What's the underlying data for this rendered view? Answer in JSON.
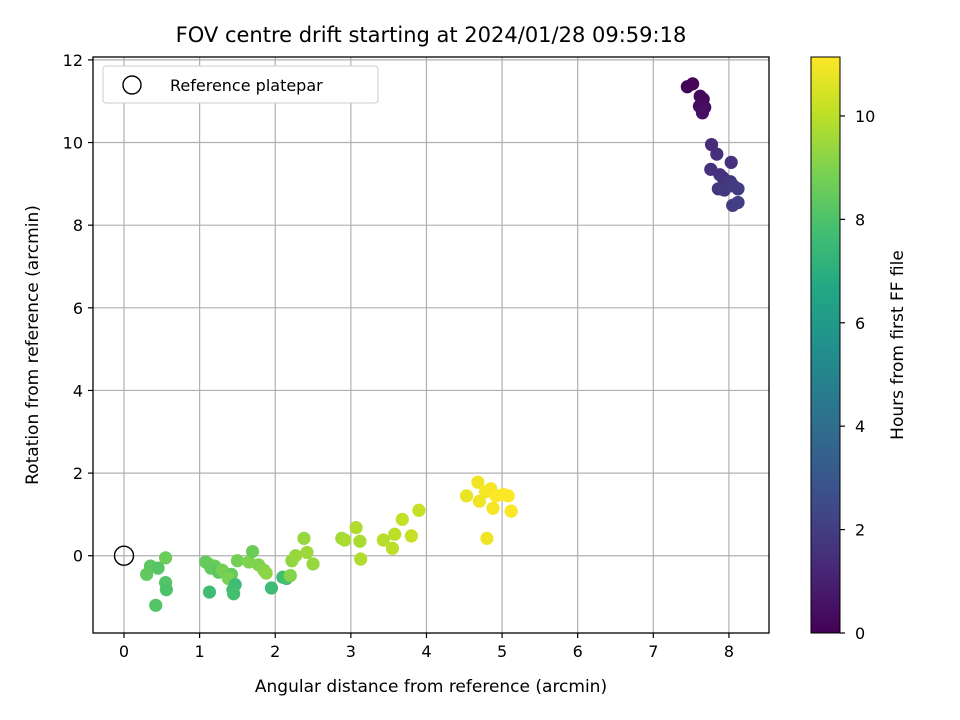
{
  "chart_data": {
    "type": "scatter",
    "title": "FOV centre drift starting at 2024/01/28 09:59:18",
    "xlabel": "Angular distance from reference (arcmin)",
    "ylabel": "Rotation from reference (arcmin)",
    "xlim": [
      -0.41,
      8.53
    ],
    "ylim": [
      -1.87,
      12.07
    ],
    "xticks": [
      0,
      1,
      2,
      3,
      4,
      5,
      6,
      7,
      8
    ],
    "yticks": [
      0,
      2,
      4,
      6,
      8,
      10,
      12
    ],
    "grid": true,
    "legend": {
      "placement": "top-left",
      "entries": [
        "Reference platepar"
      ]
    },
    "reference_point": {
      "x": 0,
      "y": 0
    },
    "colorbar": {
      "label": "Hours from first FF file",
      "range": [
        0,
        11.14
      ],
      "ticks": [
        0,
        2,
        4,
        6,
        8,
        10
      ],
      "colormap": "viridis"
    },
    "points": [
      {
        "x": 7.45,
        "y": 11.35,
        "h": 0.1
      },
      {
        "x": 7.52,
        "y": 11.42,
        "h": 0.15
      },
      {
        "x": 7.62,
        "y": 11.12,
        "h": 0.25
      },
      {
        "x": 7.66,
        "y": 11.05,
        "h": 0.3
      },
      {
        "x": 7.61,
        "y": 10.88,
        "h": 0.35
      },
      {
        "x": 7.68,
        "y": 10.85,
        "h": 0.4
      },
      {
        "x": 7.65,
        "y": 10.72,
        "h": 0.45
      },
      {
        "x": 7.77,
        "y": 9.95,
        "h": 1.4
      },
      {
        "x": 7.84,
        "y": 9.72,
        "h": 1.5
      },
      {
        "x": 7.76,
        "y": 9.35,
        "h": 1.6
      },
      {
        "x": 8.03,
        "y": 9.52,
        "h": 1.55
      },
      {
        "x": 7.92,
        "y": 9.15,
        "h": 1.7
      },
      {
        "x": 7.88,
        "y": 9.22,
        "h": 1.65
      },
      {
        "x": 8.02,
        "y": 9.05,
        "h": 1.8
      },
      {
        "x": 7.86,
        "y": 8.88,
        "h": 1.75
      },
      {
        "x": 7.94,
        "y": 8.85,
        "h": 1.85
      },
      {
        "x": 8.06,
        "y": 8.95,
        "h": 1.9
      },
      {
        "x": 8.12,
        "y": 8.88,
        "h": 1.95
      },
      {
        "x": 8.05,
        "y": 8.48,
        "h": 2.0
      },
      {
        "x": 8.12,
        "y": 8.55,
        "h": 2.05
      },
      {
        "x": 0.55,
        "y": -0.05,
        "h": 8.6
      },
      {
        "x": 0.35,
        "y": -0.25,
        "h": 8.3
      },
      {
        "x": 0.3,
        "y": -0.45,
        "h": 8.4
      },
      {
        "x": 0.45,
        "y": -0.3,
        "h": 8.2
      },
      {
        "x": 0.55,
        "y": -0.65,
        "h": 8.1
      },
      {
        "x": 0.56,
        "y": -0.82,
        "h": 8.0
      },
      {
        "x": 0.42,
        "y": -1.2,
        "h": 8.1
      },
      {
        "x": 1.12,
        "y": -0.2,
        "h": 8.7
      },
      {
        "x": 1.08,
        "y": -0.15,
        "h": 8.5
      },
      {
        "x": 1.2,
        "y": -0.25,
        "h": 8.6
      },
      {
        "x": 1.15,
        "y": -0.3,
        "h": 8.4
      },
      {
        "x": 1.25,
        "y": -0.4,
        "h": 8.3
      },
      {
        "x": 1.3,
        "y": -0.35,
        "h": 8.8
      },
      {
        "x": 1.42,
        "y": -0.45,
        "h": 8.5
      },
      {
        "x": 1.38,
        "y": -0.55,
        "h": 8.9
      },
      {
        "x": 1.47,
        "y": -0.7,
        "h": 7.6
      },
      {
        "x": 1.44,
        "y": -0.82,
        "h": 7.7
      },
      {
        "x": 1.45,
        "y": -0.92,
        "h": 7.8
      },
      {
        "x": 1.13,
        "y": -0.88,
        "h": 7.7
      },
      {
        "x": 1.5,
        "y": -0.12,
        "h": 8.8
      },
      {
        "x": 1.65,
        "y": -0.15,
        "h": 9.0
      },
      {
        "x": 1.7,
        "y": 0.1,
        "h": 8.6
      },
      {
        "x": 1.78,
        "y": -0.22,
        "h": 9.0
      },
      {
        "x": 1.85,
        "y": -0.35,
        "h": 9.1
      },
      {
        "x": 1.88,
        "y": -0.42,
        "h": 9.2
      },
      {
        "x": 1.95,
        "y": -0.78,
        "h": 7.6
      },
      {
        "x": 2.1,
        "y": -0.52,
        "h": 7.7
      },
      {
        "x": 2.15,
        "y": -0.55,
        "h": 7.8
      },
      {
        "x": 2.2,
        "y": -0.48,
        "h": 9.1
      },
      {
        "x": 2.22,
        "y": -0.12,
        "h": 9.3
      },
      {
        "x": 2.27,
        "y": 0.0,
        "h": 9.4
      },
      {
        "x": 2.38,
        "y": 0.42,
        "h": 9.4
      },
      {
        "x": 2.42,
        "y": 0.08,
        "h": 9.5
      },
      {
        "x": 2.5,
        "y": -0.2,
        "h": 9.4
      },
      {
        "x": 2.88,
        "y": 0.42,
        "h": 9.6
      },
      {
        "x": 2.92,
        "y": 0.38,
        "h": 9.7
      },
      {
        "x": 3.07,
        "y": 0.68,
        "h": 9.8
      },
      {
        "x": 3.12,
        "y": 0.35,
        "h": 9.7
      },
      {
        "x": 3.13,
        "y": -0.08,
        "h": 9.8
      },
      {
        "x": 3.43,
        "y": 0.38,
        "h": 9.9
      },
      {
        "x": 3.55,
        "y": 0.18,
        "h": 10.0
      },
      {
        "x": 3.58,
        "y": 0.52,
        "h": 10.0
      },
      {
        "x": 3.68,
        "y": 0.88,
        "h": 10.1
      },
      {
        "x": 3.8,
        "y": 0.48,
        "h": 10.2
      },
      {
        "x": 3.9,
        "y": 1.1,
        "h": 10.2
      },
      {
        "x": 4.53,
        "y": 1.45,
        "h": 10.8
      },
      {
        "x": 4.68,
        "y": 1.78,
        "h": 10.9
      },
      {
        "x": 4.7,
        "y": 1.32,
        "h": 10.9
      },
      {
        "x": 4.78,
        "y": 1.55,
        "h": 11.0
      },
      {
        "x": 4.85,
        "y": 1.62,
        "h": 11.0
      },
      {
        "x": 4.92,
        "y": 1.45,
        "h": 11.1
      },
      {
        "x": 4.88,
        "y": 1.15,
        "h": 11.0
      },
      {
        "x": 5.02,
        "y": 1.48,
        "h": 11.1
      },
      {
        "x": 5.08,
        "y": 1.45,
        "h": 11.1
      },
      {
        "x": 5.12,
        "y": 1.08,
        "h": 11.1
      },
      {
        "x": 4.8,
        "y": 0.42,
        "h": 10.9
      }
    ]
  }
}
